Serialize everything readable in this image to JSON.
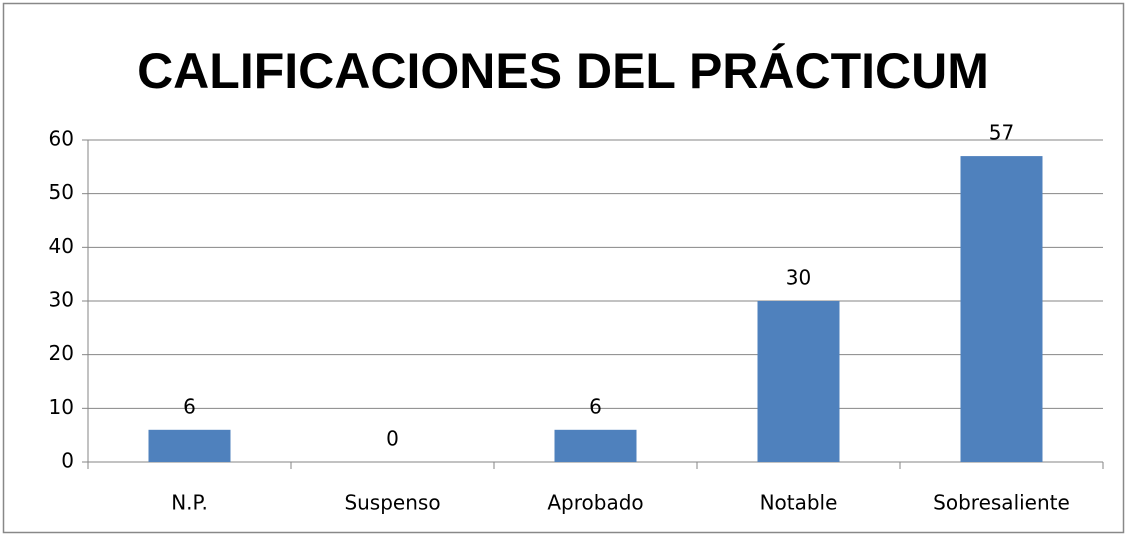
{
  "chart_data": {
    "type": "bar",
    "title": "CALIFICACIONES DEL PRÁCTICUM",
    "categories": [
      "N.P.",
      "Suspenso",
      "Aprobado",
      "Notable",
      "Sobresaliente"
    ],
    "values": [
      6,
      0,
      6,
      30,
      57
    ],
    "color": "#4f81bd",
    "ylim": [
      0,
      60
    ],
    "yticks": [
      0,
      10,
      20,
      30,
      40,
      50,
      60
    ],
    "grid": true
  }
}
